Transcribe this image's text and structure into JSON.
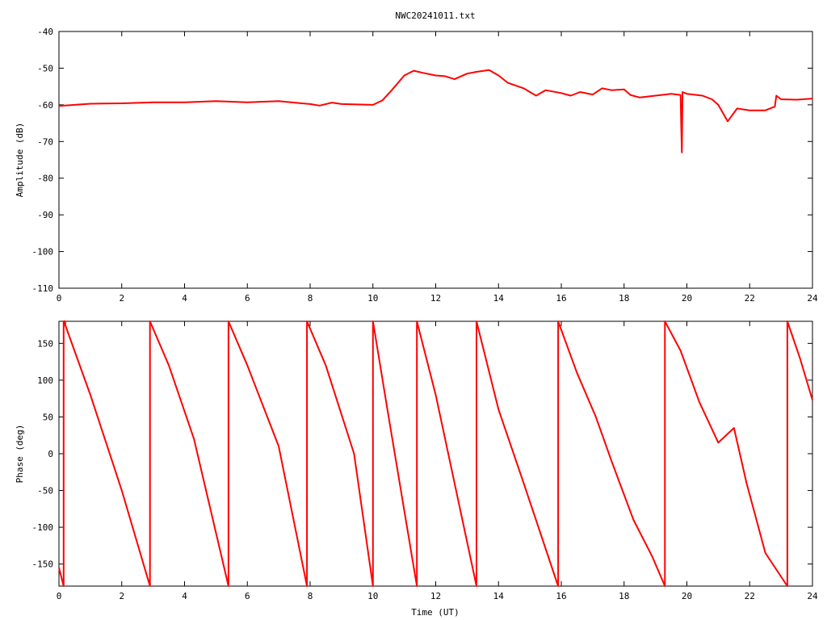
{
  "title": "NWC20241011.txt",
  "line_color": "#ff0000",
  "chart_data": [
    {
      "type": "line",
      "name": "amplitude",
      "title": "NWC20241011.txt",
      "xlabel": "",
      "ylabel": "Amplitude (dB)",
      "xlim": [
        0,
        24
      ],
      "ylim": [
        -110,
        -40
      ],
      "xticks": [
        0,
        2,
        4,
        6,
        8,
        10,
        12,
        14,
        16,
        18,
        20,
        22,
        24
      ],
      "yticks": [
        -40,
        -50,
        -60,
        -70,
        -80,
        -90,
        -100,
        -110
      ],
      "xtick_labels": [
        "0",
        "2",
        "4",
        "6",
        "8",
        "10",
        "12",
        "14",
        "16",
        "18",
        "20",
        "22",
        "24"
      ],
      "ytick_labels": [
        "-40",
        "-50",
        "-60",
        "-70",
        "-80",
        "-90",
        "-100",
        "-110"
      ],
      "grid": false,
      "series": [
        {
          "color": "#ff0000",
          "x": [
            0,
            0.5,
            1,
            2,
            3,
            4,
            5,
            6,
            7,
            7.5,
            8,
            8.3,
            8.7,
            9,
            9.5,
            10,
            10.3,
            10.6,
            11,
            11.3,
            11.6,
            12,
            12.3,
            12.6,
            13,
            13.3,
            13.7,
            14,
            14.3,
            14.8,
            15,
            15.2,
            15.5,
            16,
            16.3,
            16.6,
            17,
            17.3,
            17.6,
            18,
            18.2,
            18.5,
            19,
            19.5,
            19.8,
            19.82,
            19.84,
            19.86,
            20,
            20.5,
            20.8,
            21,
            21.3,
            21.6,
            22,
            22.5,
            22.8,
            22.85,
            23,
            23.5,
            24
          ],
          "y": [
            -60.3,
            -60,
            -59.7,
            -59.6,
            -59.3,
            -59.3,
            -59,
            -59.3,
            -59,
            -59.4,
            -59.8,
            -60.2,
            -59.4,
            -59.8,
            -59.9,
            -60,
            -58.8,
            -56,
            -52,
            -50.7,
            -51.3,
            -52,
            -52.2,
            -53,
            -51.5,
            -51,
            -50.5,
            -52,
            -54,
            -55.5,
            -56.5,
            -57.5,
            -56,
            -56.8,
            -57.5,
            -56.5,
            -57.2,
            -55.5,
            -56,
            -55.8,
            -57.3,
            -58,
            -57.5,
            -57,
            -57.3,
            -66,
            -73,
            -56.5,
            -57,
            -57.5,
            -58.5,
            -60,
            -64.5,
            -61,
            -61.5,
            -61.5,
            -60.5,
            -57.5,
            -58.5,
            -58.6,
            -58.3
          ]
        }
      ]
    },
    {
      "type": "line",
      "name": "phase",
      "title": "",
      "xlabel": "Time (UT)",
      "ylabel": "Phase (deg)",
      "xlim": [
        0,
        24
      ],
      "ylim": [
        -180,
        180
      ],
      "xticks": [
        0,
        2,
        4,
        6,
        8,
        10,
        12,
        14,
        16,
        18,
        20,
        22,
        24
      ],
      "yticks": [
        150,
        100,
        50,
        0,
        -50,
        -100,
        -150
      ],
      "xtick_labels": [
        "0",
        "2",
        "4",
        "6",
        "8",
        "10",
        "12",
        "14",
        "16",
        "18",
        "20",
        "22",
        "24"
      ],
      "ytick_labels": [
        "150",
        "100",
        "50",
        "0",
        "-50",
        "-100",
        "-150"
      ],
      "grid": false,
      "series": [
        {
          "color": "#ff0000",
          "x": [
            0,
            0.15,
            0.15,
            0.2,
            0.2,
            1,
            2,
            2.9,
            2.9,
            3.5,
            4.3,
            5.4,
            5.4,
            6,
            7,
            7.9,
            7.9,
            8.5,
            9.4,
            10,
            10,
            10.5,
            11.4,
            11.4,
            12,
            12.8,
            13.3,
            13.3,
            14,
            14.8,
            15.9,
            15.9,
            16.5,
            17.1,
            17.6,
            18.3,
            18.9,
            19.3,
            19.3,
            19.8,
            20.4,
            21,
            21.5,
            21.9,
            22.5,
            23.2,
            23.2,
            23.6,
            24
          ],
          "y": [
            -155,
            -180,
            180,
            180,
            175,
            80,
            -50,
            -180,
            180,
            120,
            20,
            -180,
            180,
            120,
            10,
            -180,
            180,
            120,
            0,
            -180,
            180,
            50,
            -180,
            180,
            80,
            -80,
            -180,
            180,
            60,
            -40,
            -180,
            180,
            110,
            50,
            -10,
            -90,
            -140,
            -180,
            180,
            140,
            70,
            15,
            35,
            -40,
            -135,
            -180,
            180,
            130,
            73
          ]
        }
      ]
    }
  ]
}
